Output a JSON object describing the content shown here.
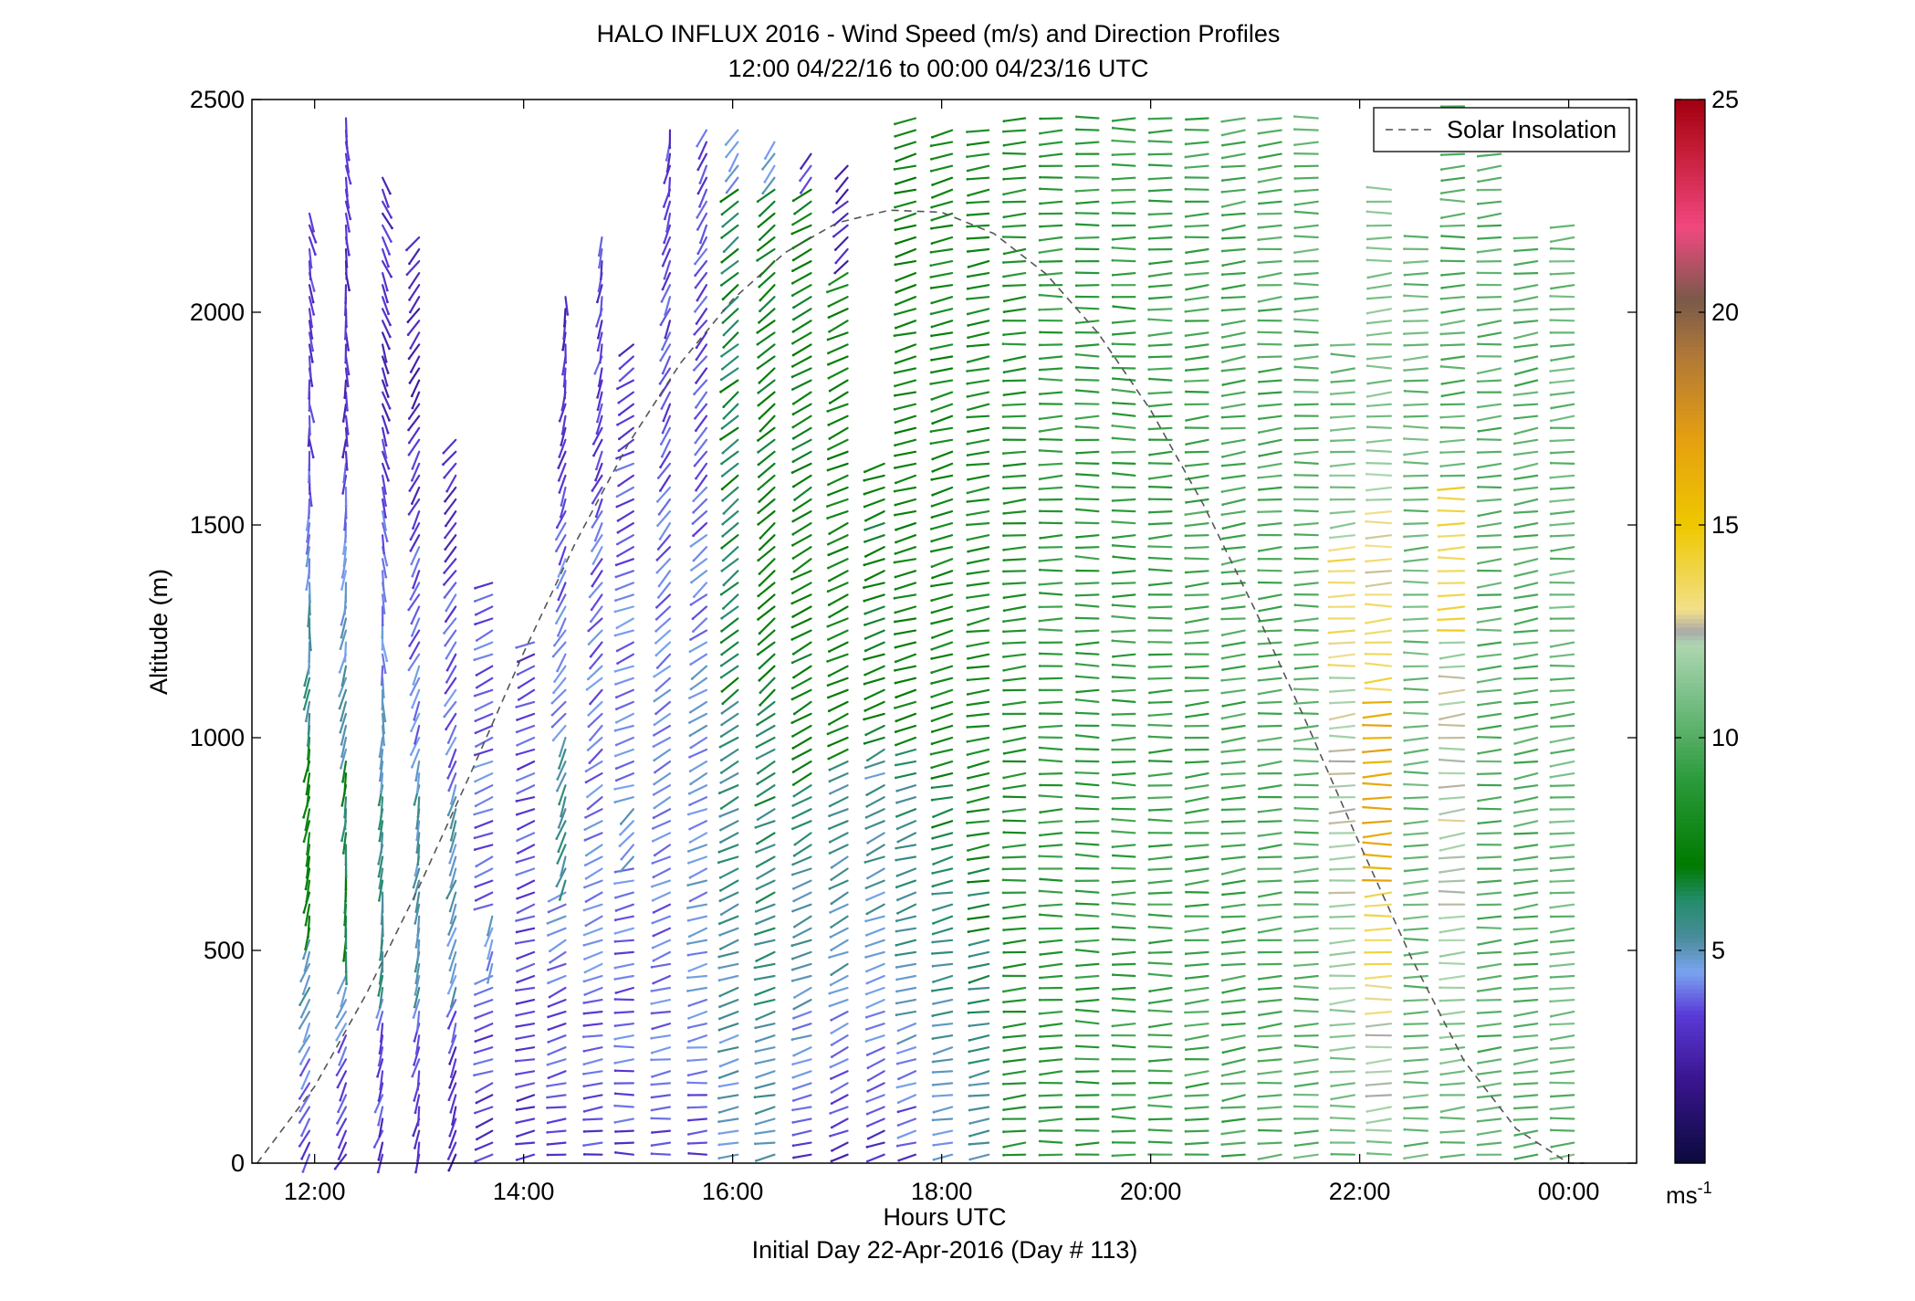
{
  "chart_data": {
    "type": "wind-barb",
    "title": "HALO INFLUX 2016 - Wind Speed (m/s) and Direction Profiles",
    "subtitle": "12:00 04/22/16 to 00:00 04/23/16  UTC",
    "xlabel": "Hours UTC",
    "xlabel2": "Initial Day 22-Apr-2016 (Day # 113)",
    "ylabel": "Altitude (m)",
    "x_range_hours": [
      11.4,
      24.65
    ],
    "x_ticks": [
      {
        "hour": 12,
        "label": "12:00"
      },
      {
        "hour": 14,
        "label": "14:00"
      },
      {
        "hour": 16,
        "label": "16:00"
      },
      {
        "hour": 18,
        "label": "18:00"
      },
      {
        "hour": 20,
        "label": "20:00"
      },
      {
        "hour": 22,
        "label": "22:00"
      },
      {
        "hour": 24,
        "label": "00:00"
      }
    ],
    "ylim": [
      0,
      2500
    ],
    "y_ticks": [
      {
        "value": 0,
        "label": "0"
      },
      {
        "value": 500,
        "label": "500"
      },
      {
        "value": 1000,
        "label": "1000"
      },
      {
        "value": 1500,
        "label": "1500"
      },
      {
        "value": 2000,
        "label": "2000"
      },
      {
        "value": 2500,
        "label": "2500"
      }
    ],
    "legend": {
      "entries": [
        {
          "label": "Solar Insolation",
          "style": "dashed",
          "color": "#666666"
        }
      ],
      "placement": "top-right"
    },
    "colorbar": {
      "range": [
        0,
        25
      ],
      "ticks": [
        {
          "value": 5,
          "label": "5"
        },
        {
          "value": 10,
          "label": "10"
        },
        {
          "value": 15,
          "label": "15"
        },
        {
          "value": 20,
          "label": "20"
        },
        {
          "value": 25,
          "label": "25"
        }
      ],
      "unit_label": "ms",
      "unit_superscript": "-1",
      "stops": [
        {
          "v": 0,
          "c": "#0a0a3c"
        },
        {
          "v": 2,
          "c": "#3a1590"
        },
        {
          "v": 3.5,
          "c": "#5a3ad8"
        },
        {
          "v": 4.5,
          "c": "#7aa4f0"
        },
        {
          "v": 5.3,
          "c": "#4a8c9c"
        },
        {
          "v": 6.2,
          "c": "#238c6a"
        },
        {
          "v": 7,
          "c": "#007a00"
        },
        {
          "v": 9,
          "c": "#2a9a3a"
        },
        {
          "v": 11,
          "c": "#7cc08a"
        },
        {
          "v": 12.2,
          "c": "#aed6b0"
        },
        {
          "v": 12.5,
          "c": "#a8a8a8"
        },
        {
          "v": 13,
          "c": "#f2e08a"
        },
        {
          "v": 15,
          "c": "#eec800"
        },
        {
          "v": 17,
          "c": "#e6a010"
        },
        {
          "v": 19,
          "c": "#b07838"
        },
        {
          "v": 20.3,
          "c": "#7a5a4a"
        },
        {
          "v": 22,
          "c": "#f04880"
        },
        {
          "v": 24,
          "c": "#c01830"
        },
        {
          "v": 25,
          "c": "#a00010"
        }
      ]
    },
    "solar_insolation_curve": {
      "x_hours": [
        11.45,
        12.0,
        12.5,
        13.0,
        13.5,
        14.0,
        14.5,
        15.0,
        15.5,
        16.0,
        16.5,
        17.0,
        17.5,
        18.0,
        18.5,
        19.0,
        19.5,
        20.0,
        20.5,
        21.0,
        21.5,
        22.0,
        22.5,
        23.0,
        23.5,
        24.0,
        24.15
      ],
      "altitude_m": [
        0,
        180,
        400,
        650,
        920,
        1200,
        1460,
        1690,
        1880,
        2030,
        2140,
        2210,
        2240,
        2235,
        2185,
        2090,
        1950,
        1770,
        1550,
        1300,
        1030,
        750,
        480,
        240,
        80,
        0,
        0
      ]
    },
    "profiles": [
      {
        "t": 11.95,
        "z_max": 2250,
        "speed_base": 3.2,
        "dir_low": 120,
        "dir_high": 70,
        "speed_mid": 7.5,
        "band": [
          550,
          1000
        ],
        "band_dir": 100
      },
      {
        "t": 12.3,
        "z_max": 2460,
        "speed_base": 3.0,
        "dir_low": 120,
        "dir_high": 80,
        "speed_mid": 6.5,
        "band": [
          450,
          950
        ],
        "band_dir": 95
      },
      {
        "t": 12.65,
        "z_max": 2320,
        "speed_base": 3.0,
        "dir_low": 110,
        "dir_high": 60,
        "speed_mid": 5.8,
        "band": [
          400,
          900
        ],
        "band_dir": 95
      },
      {
        "t": 13.0,
        "z_max": 2200,
        "speed_base": 2.8,
        "dir_low": 100,
        "dir_high": 130,
        "speed_mid": 5.2,
        "band": [
          400,
          950
        ],
        "band_dir": 100
      },
      {
        "t": 13.35,
        "z_max": 1700,
        "speed_base": 2.6,
        "dir_low": 105,
        "dir_high": 140,
        "speed_mid": 5.0,
        "band": [
          400,
          900
        ],
        "band_dir": 110
      },
      {
        "t": 13.7,
        "z_max": 1380,
        "speed_base": 3.2,
        "dir_low": 160,
        "dir_high": 150,
        "speed_mid": 4.6,
        "band": [
          450,
          600
        ],
        "band_dir": 110
      },
      {
        "t": 14.1,
        "z_max": 1250,
        "speed_base": 3.0,
        "dir_low": 170,
        "dir_high": 140,
        "speed_mid": 4.0,
        "band": [
          0,
          0
        ],
        "band_dir": 0
      },
      {
        "t": 14.4,
        "z_max": 2050,
        "speed_base": 3.0,
        "dir_low": 175,
        "dir_high": 70,
        "speed_mid": 5.5,
        "band": [
          650,
          1000
        ],
        "band_dir": 110
      },
      {
        "t": 14.75,
        "z_max": 2180,
        "speed_base": 3.4,
        "dir_low": 180,
        "dir_high": 80,
        "speed_mid": 4.8,
        "band": [
          0,
          0
        ],
        "band_dir": 0
      },
      {
        "t": 15.05,
        "z_max": 1950,
        "speed_base": 3.4,
        "dir_low": 180,
        "dir_high": 135,
        "speed_mid": 4.8,
        "band": [
          700,
          850
        ],
        "band_dir": 135
      },
      {
        "t": 15.4,
        "z_max": 2450,
        "speed_base": 3.5,
        "dir_low": 178,
        "dir_high": 95,
        "speed_mid": 4.8,
        "band": [
          0,
          0
        ],
        "band_dir": 0
      },
      {
        "t": 15.75,
        "z_max": 2450,
        "speed_base": 3.6,
        "dir_low": 178,
        "dir_high": 110,
        "speed_mid": 5.2,
        "band": [
          0,
          0
        ],
        "band_dir": 0
      },
      {
        "t": 16.05,
        "z_max": 2430,
        "speed_base": 4.5,
        "dir_low": 170,
        "dir_high": 120,
        "speed_mid": 6.5,
        "band": [
          1100,
          2300
        ],
        "band_dir": 140
      },
      {
        "t": 16.4,
        "z_max": 2400,
        "speed_base": 4.8,
        "dir_low": 170,
        "dir_high": 120,
        "speed_mid": 7.0,
        "band": [
          1100,
          2300
        ],
        "band_dir": 140
      },
      {
        "t": 16.75,
        "z_max": 2380,
        "speed_base": 3.2,
        "dir_low": 165,
        "dir_high": 125,
        "speed_mid": 7.2,
        "band": [
          900,
          2300
        ],
        "band_dir": 150
      },
      {
        "t": 17.1,
        "z_max": 2350,
        "speed_base": 2.8,
        "dir_low": 160,
        "dir_high": 135,
        "speed_mid": 7.5,
        "band": [
          950,
          2100
        ],
        "band_dir": 155
      },
      {
        "t": 17.45,
        "z_max": 1650,
        "speed_base": 2.8,
        "dir_low": 160,
        "dir_high": 150,
        "speed_mid": 7.0,
        "band": [
          1000,
          1650
        ],
        "band_dir": 160
      },
      {
        "t": 17.75,
        "z_max": 2470,
        "speed_base": 3.5,
        "dir_low": 165,
        "dir_high": 155,
        "speed_mid": 7.5,
        "band": [
          1000,
          2470
        ],
        "band_dir": 165
      },
      {
        "t": 18.1,
        "z_max": 2450,
        "speed_base": 4.2,
        "dir_low": 170,
        "dir_high": 160,
        "speed_mid": 7.8,
        "band": [
          900,
          2450
        ],
        "band_dir": 165
      },
      {
        "t": 18.45,
        "z_max": 2450,
        "speed_base": 4.8,
        "dir_low": 170,
        "dir_high": 165,
        "speed_mid": 8.0,
        "band": [
          700,
          2450
        ],
        "band_dir": 170
      },
      {
        "t": 18.8,
        "z_max": 2480,
        "speed_base": 6.5,
        "dir_low": 172,
        "dir_high": 175,
        "speed_mid": 8.5,
        "band": [
          0,
          2480
        ],
        "band_dir": 175
      },
      {
        "t": 19.15,
        "z_max": 2480,
        "speed_base": 7.0,
        "dir_low": 172,
        "dir_high": 178,
        "speed_mid": 9.0,
        "band": [
          0,
          2480
        ],
        "band_dir": 178
      },
      {
        "t": 19.5,
        "z_max": 2480,
        "speed_base": 7.0,
        "dir_low": 175,
        "dir_high": 180,
        "speed_mid": 9.0,
        "band": [
          0,
          2480
        ],
        "band_dir": 180
      },
      {
        "t": 19.85,
        "z_max": 2480,
        "speed_base": 7.2,
        "dir_low": 175,
        "dir_high": 180,
        "speed_mid": 9.2,
        "band": [
          0,
          2480
        ],
        "band_dir": 180
      },
      {
        "t": 20.2,
        "z_max": 2480,
        "speed_base": 7.5,
        "dir_low": 175,
        "dir_high": 178,
        "speed_mid": 9.4,
        "band": [
          0,
          2480
        ],
        "band_dir": 178
      },
      {
        "t": 20.55,
        "z_max": 2480,
        "speed_base": 8.0,
        "dir_low": 172,
        "dir_high": 175,
        "speed_mid": 9.5,
        "band": [
          0,
          2480
        ],
        "band_dir": 175
      },
      {
        "t": 20.9,
        "z_max": 2480,
        "speed_base": 8.2,
        "dir_low": 170,
        "dir_high": 172,
        "speed_mid": 9.6,
        "band": [
          0,
          2480
        ],
        "band_dir": 172
      },
      {
        "t": 21.25,
        "z_max": 2480,
        "speed_base": 8.5,
        "dir_low": 170,
        "dir_high": 175,
        "speed_mid": 9.8,
        "band": [
          0,
          2480
        ],
        "band_dir": 175
      },
      {
        "t": 21.6,
        "z_max": 2480,
        "speed_base": 9.0,
        "dir_low": 172,
        "dir_high": 178,
        "speed_mid": 10.2,
        "band": [
          0,
          2480
        ],
        "band_dir": 178
      },
      {
        "t": 21.95,
        "z_max": 1950,
        "speed_base": 10.5,
        "dir_low": 175,
        "dir_high": 178,
        "speed_mid": 13.5,
        "band": [
          1150,
          1450
        ],
        "band_dir": 178
      },
      {
        "t": 22.3,
        "z_max": 2300,
        "speed_base": 11.0,
        "dir_low": 178,
        "dir_high": 178,
        "speed_mid": 16.5,
        "band": [
          650,
          1100
        ],
        "band_dir": 178
      },
      {
        "t": 22.65,
        "z_max": 2200,
        "speed_base": 9.5,
        "dir_low": 175,
        "dir_high": 178,
        "speed_mid": 10.5,
        "band": [
          0,
          2200
        ],
        "band_dir": 178
      },
      {
        "t": 23.0,
        "z_max": 2500,
        "speed_base": 10.0,
        "dir_low": 175,
        "dir_high": 178,
        "speed_mid": 14.0,
        "band": [
          1250,
          1600
        ],
        "band_dir": 178
      },
      {
        "t": 23.35,
        "z_max": 2450,
        "speed_base": 9.0,
        "dir_low": 172,
        "dir_high": 175,
        "speed_mid": 10.0,
        "band": [
          0,
          2450
        ],
        "band_dir": 175
      },
      {
        "t": 23.7,
        "z_max": 2200,
        "speed_base": 8.5,
        "dir_low": 168,
        "dir_high": 172,
        "speed_mid": 10.0,
        "band": [
          0,
          2200
        ],
        "band_dir": 172
      },
      {
        "t": 24.05,
        "z_max": 2230,
        "speed_base": 9.0,
        "dir_low": 170,
        "dir_high": 175,
        "speed_mid": 10.5,
        "band": [
          0,
          2230
        ],
        "band_dir": 175
      }
    ]
  }
}
